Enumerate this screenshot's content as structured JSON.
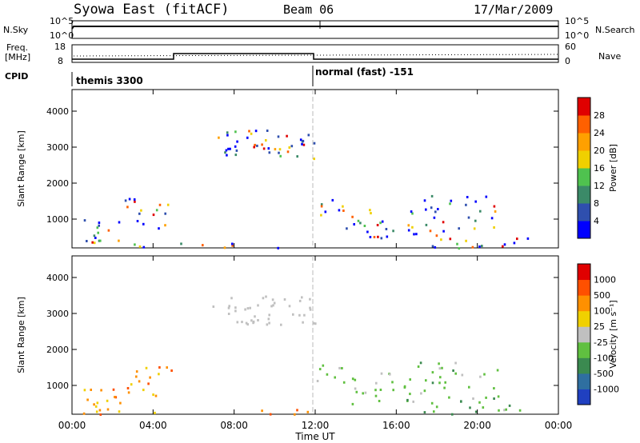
{
  "header": {
    "title": "Syowa East (fitACF)",
    "beam": "Beam 06",
    "date": "17/Mar/2009"
  },
  "panels": {
    "nsky_label": "N.Sky",
    "nsky_ticks": [
      "10^5",
      "10^0"
    ],
    "nsearch_label": "N.Search",
    "freq_label_1": "Freq.",
    "freq_label_2": "[MHz]",
    "freq_ticks": [
      "18",
      "8"
    ],
    "nave_label": "Nave",
    "nave_ticks": [
      "60",
      "0"
    ],
    "cpid_label": "CPID",
    "cpid_segments": [
      "themis 3300",
      "normal (fast) -151"
    ]
  },
  "chart_data": [
    {
      "type": "heatmap",
      "name": "power",
      "ylabel": "Slant Range [km]",
      "xlabel": "",
      "yticks": [
        1000,
        2000,
        3000,
        4000
      ],
      "ylim": [
        200,
        4600
      ],
      "xticks": [
        "00:00",
        "04:00",
        "08:00",
        "12:00",
        "16:00",
        "20:00",
        "00:00"
      ],
      "xlim_hours": [
        0,
        24
      ],
      "colorbar_label": "Power [dB]",
      "colorbar_ticks": [
        "4",
        "8",
        "12",
        "16",
        "20",
        "24",
        "28"
      ],
      "colors": [
        "#0000ff",
        "#2f4fae",
        "#3b8a68",
        "#4fc24f",
        "#f0d000",
        "#ffa000",
        "#ff6000",
        "#e00000"
      ]
    },
    {
      "type": "heatmap",
      "name": "velocity",
      "ylabel": "Slant Range [km]",
      "xlabel": "Time UT",
      "yticks": [
        1000,
        2000,
        3000,
        4000
      ],
      "ylim": [
        200,
        4600
      ],
      "xticks": [
        "00:00",
        "04:00",
        "08:00",
        "12:00",
        "16:00",
        "20:00",
        "00:00"
      ],
      "xlim_hours": [
        0,
        24
      ],
      "colorbar_label": "Velocity [m s⁻¹]",
      "colorbar_ticks": [
        "1000",
        "500",
        "100",
        "25",
        "-25",
        "-100",
        "-500",
        "-1000"
      ],
      "colors": [
        "#2040c0",
        "#2f6fa0",
        "#3b8a50",
        "#60c040",
        "#c0c0c0",
        "#f0d000",
        "#ff9000",
        "#ff5000",
        "#e00000"
      ]
    }
  ]
}
